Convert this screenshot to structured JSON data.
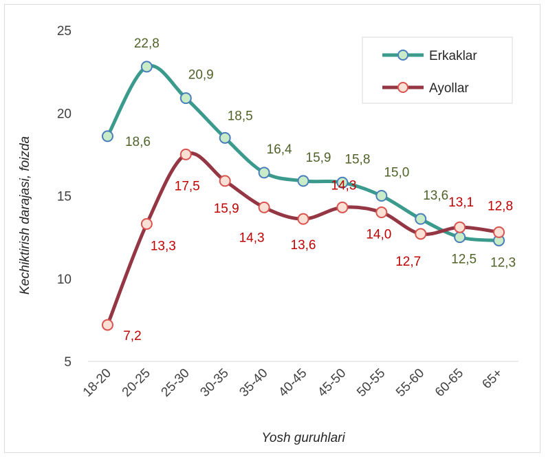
{
  "chart_data": {
    "type": "line",
    "xlabel": "Yosh guruhlari",
    "ylabel": "Kechiktirish darajasi, foizda",
    "ylim": [
      5,
      25
    ],
    "yticks": [
      5,
      10,
      15,
      20,
      25
    ],
    "grid": false,
    "legend_position": "top-right",
    "categories": [
      "18-20",
      "20-25",
      "25-30",
      "30-35",
      "35-40",
      "40-45",
      "45-50",
      "50-55",
      "55-60",
      "60-65",
      "65+"
    ],
    "series": [
      {
        "name": "Erkaklar",
        "color": "#3a9a8c",
        "marker_fill": "#c8ebc8",
        "marker_stroke": "#4a7ebb",
        "label_color": "#4f6228",
        "values": [
          18.6,
          22.8,
          20.9,
          18.5,
          16.4,
          15.9,
          15.8,
          15.0,
          13.6,
          12.5,
          12.3
        ],
        "labels": [
          "18,6",
          "22,8",
          "20,9",
          "18,5",
          "16,4",
          "15,9",
          "15,8",
          "15,0",
          "13,6",
          "12,5",
          "12,3"
        ]
      },
      {
        "name": "Ayollar",
        "color": "#943643",
        "marker_fill": "#fbe0d6",
        "marker_stroke": "#d9534f",
        "label_color": "#c00000",
        "values": [
          7.2,
          13.3,
          17.5,
          15.9,
          14.3,
          13.6,
          14.3,
          14.0,
          12.7,
          13.1,
          12.8
        ],
        "labels": [
          "7,2",
          "13,3",
          "17,5",
          "15,9",
          "14,3",
          "13,6",
          "14,3",
          "14,0",
          "12,7",
          "13,1",
          "12,8"
        ]
      }
    ]
  }
}
